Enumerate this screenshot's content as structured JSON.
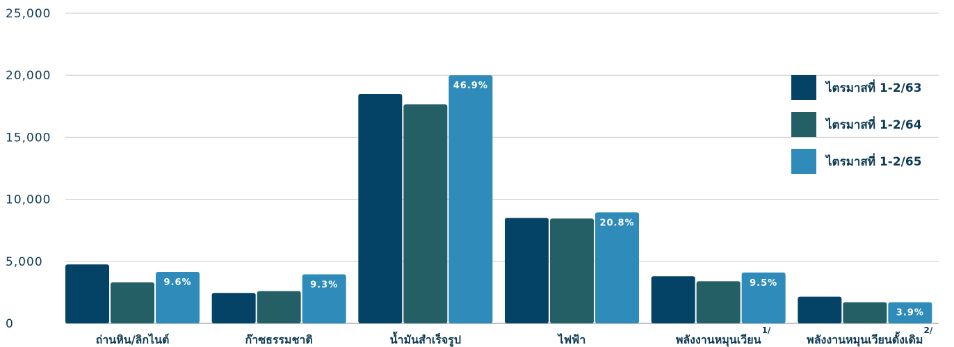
{
  "chart_data": {
    "type": "bar",
    "categories": [
      "ถ่านหิน/ลิกไนต์",
      "ก๊าซธรรมชาติ",
      "น้ำมันสำเร็จรูป",
      "ไฟฟ้า",
      "พลังงานหมุนเวียน",
      "พลังงานหมุนเวียนดั้งเดิม"
    ],
    "category_superscripts": [
      "",
      "",
      "",
      "",
      "1/",
      "2/"
    ],
    "series": [
      {
        "name": "ไตรมาสที่ 1-2/63",
        "color": "#044266",
        "values": [
          4750,
          2450,
          18500,
          8500,
          3800,
          2150
        ]
      },
      {
        "name": "ไตรมาสที่ 1-2/64",
        "color": "#235f65",
        "values": [
          3300,
          2600,
          17650,
          8450,
          3400,
          1700
        ]
      },
      {
        "name": "ไตรมาสที่ 1-2/65",
        "color": "#2e8bba",
        "values": [
          4150,
          3950,
          20000,
          8950,
          4100,
          1700
        ]
      }
    ],
    "data_labels": [
      "9.6%",
      "9.3%",
      "46.9%",
      "20.8%",
      "9.5%",
      "3.9%"
    ],
    "yticks": [
      "0",
      "5,000",
      "10,000",
      "15,000",
      "20,000",
      "25,000"
    ],
    "ylim": [
      0,
      25000
    ],
    "grid": true,
    "legend_position": "right"
  }
}
